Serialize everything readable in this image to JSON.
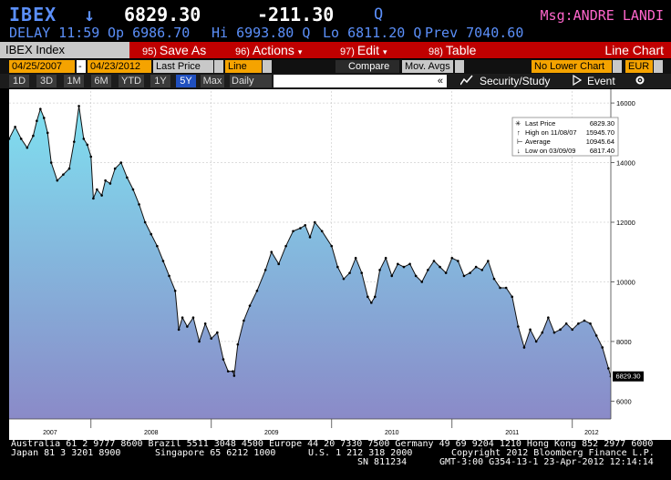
{
  "header": {
    "ticker": "IBEX",
    "arrow": "↓",
    "price": "6829.30",
    "change": "-211.30",
    "q": "Q",
    "msg": "Msg:ANDRE LANDI"
  },
  "quote": {
    "delay": "DELAY 11:59",
    "open": "Op 6986.70",
    "high": "Hi 6993.80 Q",
    "low": "Lo 6811.20 Q",
    "prev": "Prev 7040.60"
  },
  "menu": {
    "index_name": "IBEX Index",
    "save": {
      "num": "95)",
      "label": "Save As"
    },
    "actions": {
      "num": "96)",
      "label": "Actions",
      "dd": "▾"
    },
    "edit": {
      "num": "97)",
      "label": "Edit",
      "dd": "▾"
    },
    "table": {
      "num": "98)",
      "label": "Table"
    },
    "chart_type": "Line Chart"
  },
  "controls": {
    "start_date": "04/25/2007",
    "dash": "-",
    "end_date": "04/23/2012",
    "field": "Last Price",
    "style": "Line",
    "compare": "Compare",
    "mov_avgs": "Mov. Avgs",
    "lower_chart": "No Lower Chart",
    "currency": "EUR"
  },
  "periods": [
    "1D",
    "3D",
    "1M",
    "6M",
    "YTD",
    "1Y",
    "5Y",
    "Max"
  ],
  "active_period": "5Y",
  "toolbar": {
    "frequency": "Daily",
    "scroll": "«",
    "security": "Security/Study",
    "event": "Event"
  },
  "legend": {
    "last": {
      "label": "Last Price",
      "value": "6829.30"
    },
    "high": {
      "label": "High on 11/08/07",
      "value": "15945.70"
    },
    "avg": {
      "label": "Average",
      "value": "10945.64"
    },
    "low": {
      "label": "Low on 03/09/09",
      "value": "6817.40"
    }
  },
  "chart_data": {
    "type": "area",
    "title": "",
    "xlabel": "",
    "ylabel": "",
    "ylim": [
      5400,
      16400
    ],
    "yticks": [
      6000,
      8000,
      10000,
      12000,
      14000,
      16000
    ],
    "ytick_labels": [
      "6000",
      "8000",
      "10000",
      "12000",
      "14000",
      "16000"
    ],
    "xticks": [
      2007.0,
      2008.0,
      2009.0,
      2010.0,
      2011.0,
      2012.0
    ],
    "xtick_labels": [
      "2007",
      "2008",
      "2009",
      "2010",
      "2011",
      "2012"
    ],
    "xlim": [
      2007.32,
      2012.32
    ],
    "last_value_label": "6829.30",
    "series": [
      {
        "name": "Last Price",
        "x": [
          2007.32,
          2007.37,
          2007.42,
          2007.47,
          2007.52,
          2007.55,
          2007.58,
          2007.61,
          2007.64,
          2007.67,
          2007.72,
          2007.77,
          2007.82,
          2007.86,
          2007.9,
          2007.94,
          2007.97,
          2008.0,
          2008.02,
          2008.05,
          2008.09,
          2008.12,
          2008.16,
          2008.2,
          2008.25,
          2008.3,
          2008.35,
          2008.4,
          2008.45,
          2008.5,
          2008.55,
          2008.6,
          2008.65,
          2008.7,
          2008.73,
          2008.76,
          2008.8,
          2008.85,
          2008.9,
          2008.95,
          2009.0,
          2009.05,
          2009.1,
          2009.14,
          2009.18,
          2009.19,
          2009.22,
          2009.27,
          2009.32,
          2009.38,
          2009.45,
          2009.5,
          2009.56,
          2009.62,
          2009.68,
          2009.74,
          2009.78,
          2009.82,
          2009.86,
          2009.92,
          2010.0,
          2010.05,
          2010.1,
          2010.15,
          2010.2,
          2010.25,
          2010.3,
          2010.33,
          2010.36,
          2010.4,
          2010.45,
          2010.5,
          2010.55,
          2010.6,
          2010.65,
          2010.7,
          2010.75,
          2010.8,
          2010.85,
          2010.9,
          2010.95,
          2011.0,
          2011.05,
          2011.1,
          2011.15,
          2011.2,
          2011.25,
          2011.3,
          2011.35,
          2011.4,
          2011.45,
          2011.5,
          2011.55,
          2011.6,
          2011.65,
          2011.7,
          2011.75,
          2011.8,
          2011.85,
          2011.9,
          2011.95,
          2012.0,
          2012.05,
          2012.1,
          2012.15,
          2012.2,
          2012.25,
          2012.3,
          2012.32
        ],
        "y": [
          14800,
          15200,
          14800,
          14500,
          14900,
          15400,
          15800,
          15500,
          15000,
          14000,
          13400,
          13600,
          13800,
          14700,
          15900,
          14800,
          14600,
          14200,
          12800,
          13100,
          12900,
          13400,
          13300,
          13800,
          14000,
          13500,
          13100,
          12600,
          12000,
          11600,
          11200,
          10700,
          10200,
          9700,
          8400,
          8800,
          8500,
          8800,
          8000,
          8600,
          8100,
          8300,
          7400,
          7000,
          7000,
          6850,
          7900,
          8700,
          9200,
          9700,
          10400,
          11000,
          10600,
          11200,
          11700,
          11800,
          11900,
          11500,
          12000,
          11700,
          11200,
          10500,
          10100,
          10300,
          10800,
          10300,
          9500,
          9300,
          9500,
          10400,
          10800,
          10200,
          10600,
          10500,
          10600,
          10200,
          10000,
          10400,
          10700,
          10500,
          10300,
          10800,
          10700,
          10200,
          10300,
          10500,
          10400,
          10700,
          10100,
          9800,
          9800,
          9500,
          8500,
          7800,
          8400,
          8000,
          8300,
          8800,
          8300,
          8400,
          8600,
          8400,
          8600,
          8700,
          8600,
          8200,
          7800,
          7100,
          6829
        ]
      }
    ]
  },
  "footer": {
    "line1": "Australia 61 2 9777 8600 Brazil 5511 3048 4500 Europe 44 20 7330 7500 Germany 49 69 9204 1210 Hong Kong 852 2977 6000",
    "line2a": "Japan 81 3 3201 8900",
    "line2b": "Singapore 65 6212 1000",
    "line2c": "U.S. 1 212 318 2000",
    "line2d": "Copyright 2012 Bloomberg Finance L.P.",
    "line3a": "SN 811234",
    "line3b": "GMT-3:00 G354-13-1 23-Apr-2012 12:14:14"
  },
  "colors": {
    "background": "#000000",
    "accent_blue": "#5b8ff9",
    "msg_pink": "#ff66cc",
    "menu_red": "#c00000",
    "field_orange": "#f5a300",
    "area_top": "#7fe0f0",
    "area_bottom": "#8a8ac8"
  }
}
